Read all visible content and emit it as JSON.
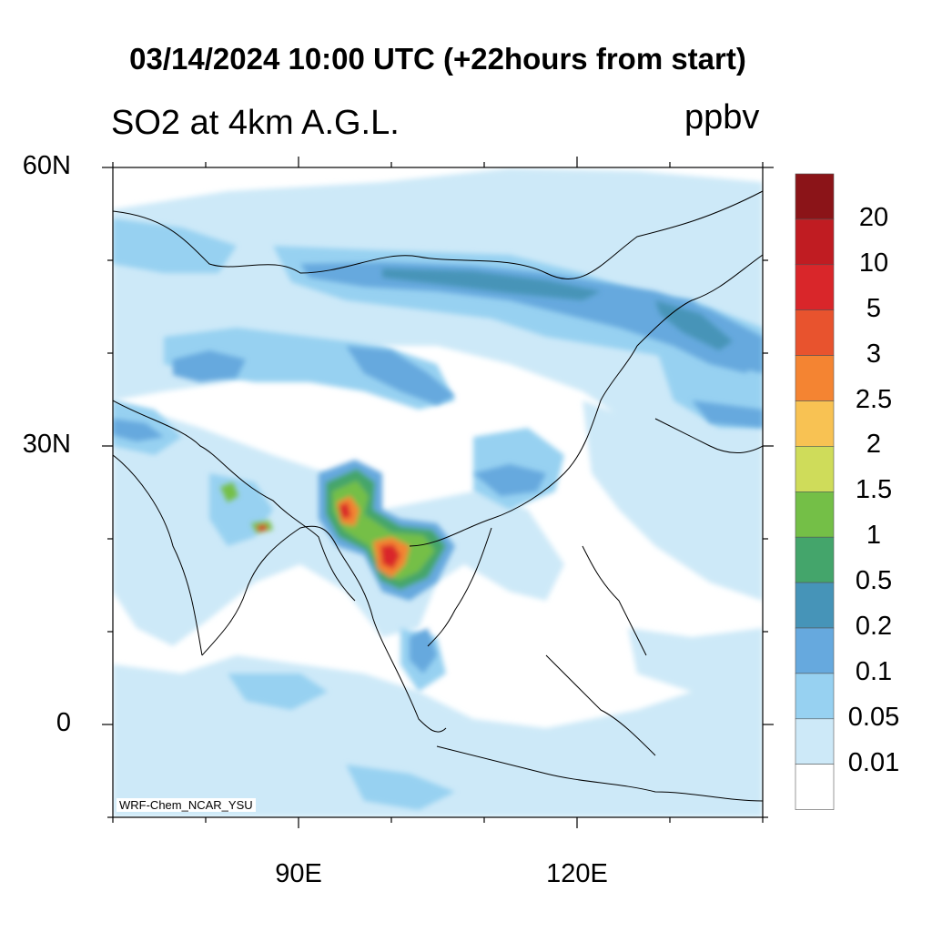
{
  "header": {
    "title": "03/14/2024 10:00 UTC (+22hours from start)",
    "left_subtitle": "SO2 at 4km A.G.L.",
    "right_subtitle": "ppbv"
  },
  "map": {
    "credit": "WRF-Chem_NCAR_YSU",
    "lat_ticks": [
      {
        "label": "60N",
        "value": 60
      },
      {
        "label": "30N",
        "value": 30
      },
      {
        "label": "0",
        "value": 0
      }
    ],
    "lon_ticks": [
      {
        "label": "90E",
        "value": 90
      },
      {
        "label": "120E",
        "value": 120
      }
    ],
    "extent": {
      "lon_min": 70,
      "lon_max": 140,
      "lat_min": -10,
      "lat_max": 60
    }
  },
  "colorbar": {
    "labels": [
      "20",
      "10",
      "5",
      "3",
      "2.5",
      "2",
      "1.5",
      "1",
      "0.5",
      "0.2",
      "0.1",
      "0.05",
      "0.01"
    ],
    "colors": [
      "#8b1418",
      "#c01c22",
      "#d9262a",
      "#e8532e",
      "#f48432",
      "#f8c253",
      "#cfdc5a",
      "#74bf47",
      "#44a56b",
      "#4694b8",
      "#66a9de",
      "#97d1f1",
      "#cde9f8",
      "#ffffff"
    ]
  }
}
